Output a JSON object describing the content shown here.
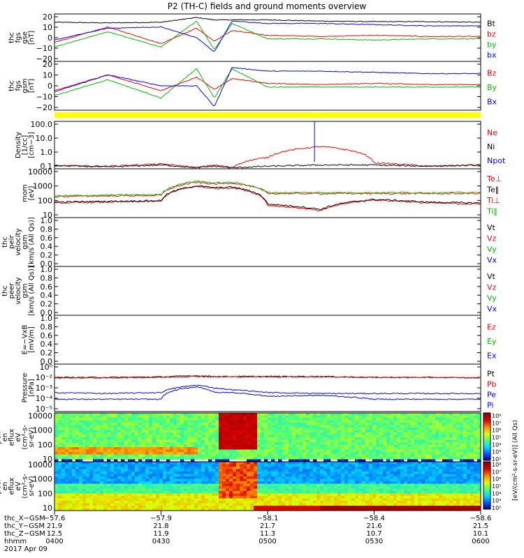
{
  "title": "P2 (TH-C) fields and ground moments overview",
  "panels": [
    {
      "id": "fgs-gse",
      "ylabel": [
        "thc",
        "fgs",
        "gse",
        "[nT]"
      ],
      "yticks": [
        "20",
        "10",
        "0",
        "−10",
        "−20"
      ],
      "legend": [
        {
          "text": "Bt",
          "color": "#000000"
        },
        {
          "text": "bz",
          "color": "#ff0000"
        },
        {
          "text": "by",
          "color": "#00bb00"
        },
        {
          "text": "bx",
          "color": "#0000ff"
        }
      ]
    },
    {
      "id": "fgs-gsm",
      "ylabel": [
        "thc",
        "fgs",
        "gsm",
        "[nT]"
      ],
      "yticks": [
        "20",
        "10",
        "0",
        "−10",
        "−20"
      ],
      "legend": [
        {
          "text": "Bz",
          "color": "#ff0000"
        },
        {
          "text": "By",
          "color": "#00bb00"
        },
        {
          "text": "Bx",
          "color": "#0000ff"
        }
      ]
    },
    {
      "id": "density",
      "ylabel": [
        "Density",
        "[1/cc]",
        "[cm−3]"
      ],
      "yticks": [
        "100.0",
        "10.0",
        "1.0",
        "0.1"
      ],
      "legend": [
        {
          "text": "Ne",
          "color": "#ff0000"
        },
        {
          "text": "Ni",
          "color": "#000000"
        },
        {
          "text": "Npot",
          "color": "#0000ff"
        }
      ]
    },
    {
      "id": "temperature",
      "ylabel": [
        "mom",
        "[eV]"
      ],
      "yticks": [
        "10000",
        "1000",
        "100",
        "10"
      ],
      "legend": [
        {
          "text": "Te⊥",
          "color": "#ff0000"
        },
        {
          "text": "Te‖",
          "color": "#000000"
        },
        {
          "text": "Ti⊥",
          "color": "#ff0000"
        },
        {
          "text": "Ti‖",
          "color": "#00bb00"
        }
      ]
    },
    {
      "id": "peir-velocity",
      "ylabel": [
        "thc",
        "peir",
        "velocity",
        "gsm",
        "[km/s (All Qs)]"
      ],
      "yticks": [
        "1.0",
        "0.8",
        "0.6",
        "0.4",
        "0.2",
        "0.0"
      ],
      "legend": [
        {
          "text": "Vt",
          "color": "#000000"
        },
        {
          "text": "Vz",
          "color": "#ff0000"
        },
        {
          "text": "Vy",
          "color": "#00bb00"
        },
        {
          "text": "Vx",
          "color": "#0000ff"
        }
      ]
    },
    {
      "id": "peer-velocity",
      "ylabel": [
        "thc",
        "peer",
        "velocity",
        "gsm",
        "[km/s (All Qs)]"
      ],
      "yticks": [
        "1.0",
        "0.8",
        "0.6",
        "0.4",
        "0.2",
        "0.0"
      ],
      "legend": [
        {
          "text": "Vt",
          "color": "#000000"
        },
        {
          "text": "Vz",
          "color": "#ff0000"
        },
        {
          "text": "Vy",
          "color": "#00bb00"
        },
        {
          "text": "Vx",
          "color": "#0000ff"
        }
      ]
    },
    {
      "id": "efield",
      "ylabel": [
        "E=−VxB",
        "[mV/m]"
      ],
      "yticks": [
        "1.0",
        "0.8",
        "0.6",
        "0.4",
        "0.2",
        "0.0"
      ],
      "legend": [
        {
          "text": "Ez",
          "color": "#ff0000"
        },
        {
          "text": "Ey",
          "color": "#00bb00"
        },
        {
          "text": "Ex",
          "color": "#0000ff"
        }
      ]
    },
    {
      "id": "pressure",
      "ylabel": [
        "Pressure",
        "[nPa]"
      ],
      "yticks": [
        "10⁰",
        "10⁻²",
        "10⁻³",
        "10⁻⁴",
        "10⁻⁵"
      ],
      "legend": [
        {
          "text": "Pt",
          "color": "#000000"
        },
        {
          "text": "Pb",
          "color": "#ff0000"
        },
        {
          "text": "Pe",
          "color": "#0000ff"
        },
        {
          "text": "Pi",
          "color": "#0000ff"
        }
      ]
    },
    {
      "id": "peir-eflux",
      "ylabel": [
        "thc",
        "peir",
        "en",
        "eflux",
        "eV",
        "(cm²-s-",
        "sr-eV)"
      ],
      "yticks": [
        "10000",
        "1000",
        "100",
        "10"
      ],
      "legend": []
    },
    {
      "id": "peer-eflux",
      "ylabel": [
        "thc",
        "peer",
        "en",
        "eflux",
        "eV",
        "(cm²-s-",
        "sr-eV)"
      ],
      "yticks": [
        "10000",
        "1000",
        "100",
        "10"
      ],
      "legend": []
    }
  ],
  "colorbar": {
    "ticks": [
      "10⁸",
      "10⁷",
      "10⁶",
      "10⁵",
      "10⁴",
      "10³",
      "10²",
      "10⁸",
      "10⁷",
      "10⁶",
      "10⁵",
      "10⁴",
      "10³",
      "10²"
    ],
    "label": "[eV/(cm²-s-sr-eV)] (All Qs)"
  },
  "xaxis": {
    "rows": [
      {
        "label": "thc_X−GSM",
        "values": [
          "−57.6",
          "−57.9",
          "−58.1",
          "−58.4",
          "−58.6"
        ]
      },
      {
        "label": "thc_Y−GSM",
        "values": [
          "21.9",
          "21.8",
          "21.7",
          "21.6",
          "21.5"
        ]
      },
      {
        "label": "thc_Z−GSM",
        "values": [
          "12.5",
          "11.9",
          "11.3",
          "10.7",
          "10.1"
        ]
      },
      {
        "label": "hhmm",
        "values": [
          "0400",
          "0430",
          "0500",
          "0530",
          "0600"
        ]
      }
    ],
    "date": "2017 Apr 09"
  },
  "chart_data": {
    "type": "line",
    "title": "P2 (TH-C) fields and ground moments overview",
    "x": [
      "0400",
      "0415",
      "0430",
      "0440",
      "0445",
      "0450",
      "0500",
      "0515",
      "0530",
      "0545",
      "0600"
    ],
    "panels": [
      {
        "name": "thc fgs gse [nT]",
        "ylim": [
          -20,
          20
        ],
        "series": [
          {
            "name": "Bt",
            "values": [
              13,
              12.5,
              13,
              17,
              15,
              15,
              15,
              14,
              13.5,
              13.5,
              13
            ]
          },
          {
            "name": "bz",
            "values": [
              -4,
              9,
              -5,
              8,
              -3,
              6,
              2,
              1,
              2,
              1,
              1
            ]
          },
          {
            "name": "by",
            "values": [
              -8,
              5,
              -8,
              14,
              -10,
              12,
              -1,
              -1,
              -2,
              -1,
              -1
            ]
          },
          {
            "name": "bx",
            "values": [
              -2,
              8,
              9,
              0,
              -12,
              14,
              12,
              12,
              11,
              10,
              10
            ]
          }
        ]
      },
      {
        "name": "thc fgs gsm [nT]",
        "ylim": [
          -20,
          20
        ],
        "series": [
          {
            "name": "Bz",
            "values": [
              -4,
              9,
              -4,
              7,
              -3,
              6,
              2,
              1,
              2,
              1,
              1
            ]
          },
          {
            "name": "By",
            "values": [
              -8,
              5,
              -10,
              14,
              -10,
              14,
              -1,
              -1,
              -1,
              -1,
              -1
            ]
          },
          {
            "name": "Bx",
            "values": [
              -5,
              9,
              0,
              0,
              -17,
              15,
              12,
              12,
              11,
              10,
              10
            ]
          }
        ]
      },
      {
        "name": "Density [1/cc]",
        "ylim": [
          0.05,
          300
        ],
        "series": [
          {
            "name": "Ne",
            "values": [
              0.09,
              0.08,
              0.12,
              0.06,
              0.1,
              0.06,
              0.4,
              3,
              0.15,
              0.08,
              0.1
            ]
          },
          {
            "name": "Ni",
            "values": [
              0.09,
              0.07,
              0.1,
              0.06,
              0.08,
              0.06,
              0.08,
              0.1,
              0.1,
              0.08,
              0.1
            ]
          }
        ]
      },
      {
        "name": "mom [eV]",
        "ylim": [
          5,
          20000
        ],
        "series": [
          {
            "name": "Te⊥",
            "values": [
              60,
              70,
              80,
              1000,
              700,
              800,
              40,
              15,
              100,
              60,
              50
            ]
          },
          {
            "name": "Te‖",
            "values": [
              70,
              80,
              90,
              1100,
              800,
              900,
              50,
              20,
              110,
              70,
              60
            ]
          },
          {
            "name": "Ti⊥",
            "values": [
              180,
              200,
              220,
              2000,
              1500,
              1800,
              300,
              300,
              300,
              300,
              300
            ]
          },
          {
            "name": "Ti‖",
            "values": [
              200,
              230,
              250,
              2500,
              1800,
              2000,
              350,
              350,
              350,
              350,
              350
            ]
          }
        ]
      },
      {
        "name": "Pressure [nPa]",
        "ylim": [
          1e-05,
          1
        ],
        "series": [
          {
            "name": "Pt",
            "values": [
              0.04,
              0.04,
              0.045,
              0.06,
              0.05,
              0.05,
              0.05,
              0.05,
              0.04,
              0.04,
              0.035
            ]
          },
          {
            "name": "Pb",
            "values": [
              0.035,
              0.035,
              0.04,
              0.05,
              0.045,
              0.045,
              0.045,
              0.045,
              0.04,
              0.04,
              0.035
            ]
          },
          {
            "name": "Pe",
            "values": [
              0.001,
              0.0008,
              0.001,
              0.006,
              0.003,
              0.002,
              0.001,
              0.0008,
              0.0008,
              0.0008,
              0.0008
            ]
          },
          {
            "name": "Pi",
            "values": [
              0.0002,
              0.0002,
              0.0002,
              0.004,
              0.001,
              0.001,
              0.0004,
              0.0005,
              0.0002,
              0.0002,
              0.0002
            ]
          }
        ]
      }
    ]
  }
}
